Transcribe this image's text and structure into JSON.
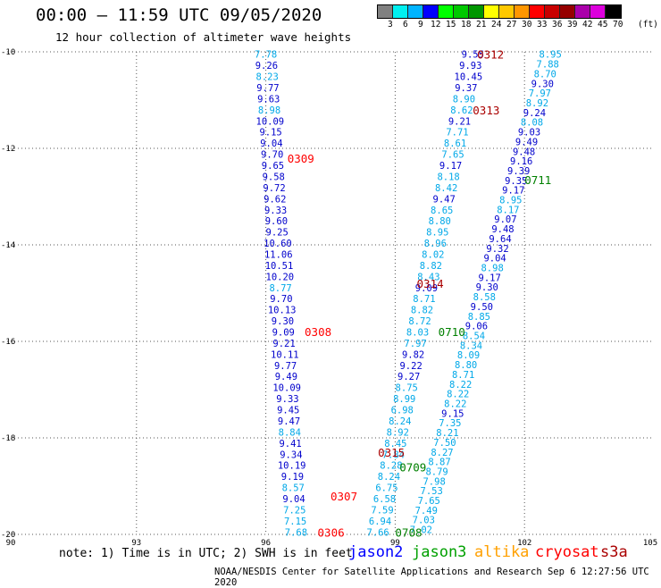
{
  "header": {
    "title": "00:00 – 11:59 UTC 09/05/2020",
    "subtitle": "12 hour collection of altimeter wave heights"
  },
  "colorbar": {
    "unit_label": "(ft)",
    "levels": [
      "3",
      "6",
      "9",
      "12",
      "15",
      "18",
      "21",
      "24",
      "27",
      "30",
      "33",
      "36",
      "39",
      "42",
      "45",
      "70"
    ],
    "colors": [
      "#808080",
      "#00f0f0",
      "#00b4ff",
      "#0000ff",
      "#00ff00",
      "#00c800",
      "#009600",
      "#ffff00",
      "#ffc800",
      "#ff9600",
      "#ff0000",
      "#c80000",
      "#960000",
      "#aa00aa",
      "#dd00dd",
      "#000000"
    ]
  },
  "note": "note: 1) Time is in UTC; 2) SWH is in feet",
  "legend": [
    {
      "label": "jason2",
      "color": "#0000ff"
    },
    {
      "label": "jason3",
      "color": "#00a000"
    },
    {
      "label": "altika",
      "color": "#ffa000"
    },
    {
      "label": "cryosat",
      "color": "#ff0000"
    },
    {
      "label": "s3a",
      "color": "#aa0000"
    }
  ],
  "footer": "NOAA/NESDIS Center for Satellite Applications and Research   Sep  6 12:27:56 UTC 2020",
  "chart_data": {
    "type": "scatter",
    "title": "00:00 – 11:59 UTC 09/05/2020",
    "xlim": [
      90,
      105
    ],
    "ylim": [
      -20,
      -10
    ],
    "x_ticks": [
      90,
      93,
      96,
      99,
      102,
      105
    ],
    "x_tick_labels": [
      "90",
      "93",
      "96",
      "99",
      "102",
      "105"
    ],
    "y_ticks": [
      -10,
      -12,
      -14,
      -16,
      -18,
      -20
    ],
    "y_tick_labels": [
      "-10",
      "-12",
      "-14",
      "-16",
      "-18",
      "-20"
    ],
    "grid": true,
    "colors": {
      "dark": "#0000cc",
      "light": "#00a8e8"
    },
    "tracks": [
      {
        "x0": 96.0,
        "y0": -10.05,
        "x1": 96.7,
        "y1": -19.95,
        "values": [
          [
            "7.78",
            "l"
          ],
          [
            "9.26",
            "d"
          ],
          [
            "8.23",
            "l"
          ],
          [
            "9.77",
            "d"
          ],
          [
            "9.63",
            "d"
          ],
          [
            "8.98",
            "l"
          ],
          [
            "10.09",
            "d"
          ],
          [
            "9.15",
            "d"
          ],
          [
            "9.04",
            "d"
          ],
          [
            "9.70",
            "d"
          ],
          [
            "9.65",
            "d"
          ],
          [
            "9.58",
            "d"
          ],
          [
            "9.72",
            "d"
          ],
          [
            "9.62",
            "d"
          ],
          [
            "9.33",
            "d"
          ],
          [
            "9.60",
            "d"
          ],
          [
            "9.25",
            "d"
          ],
          [
            "10.60",
            "d"
          ],
          [
            "11.06",
            "d"
          ],
          [
            "10.51",
            "d"
          ],
          [
            "10.20",
            "d"
          ],
          [
            "8.77",
            "l"
          ],
          [
            "9.70",
            "d"
          ],
          [
            "10.13",
            "d"
          ],
          [
            "9.30",
            "d"
          ],
          [
            "9.09",
            "d"
          ],
          [
            "9.21",
            "d"
          ],
          [
            "10.11",
            "d"
          ],
          [
            "9.77",
            "d"
          ],
          [
            "9.49",
            "d"
          ],
          [
            "10.09",
            "d"
          ],
          [
            "9.33",
            "d"
          ],
          [
            "9.45",
            "d"
          ],
          [
            "9.47",
            "d"
          ],
          [
            "8.84",
            "l"
          ],
          [
            "9.41",
            "d"
          ],
          [
            "9.34",
            "d"
          ],
          [
            "10.19",
            "d"
          ],
          [
            "9.19",
            "d"
          ],
          [
            "8.57",
            "l"
          ],
          [
            "9.04",
            "d"
          ],
          [
            "7.25",
            "l"
          ],
          [
            "7.15",
            "l"
          ],
          [
            "7.68",
            "l"
          ]
        ]
      },
      {
        "x0": 100.8,
        "y0": -10.05,
        "x1": 98.6,
        "y1": -19.95,
        "values": [
          [
            "9.55",
            "d"
          ],
          [
            "9.93",
            "d"
          ],
          [
            "10.45",
            "d"
          ],
          [
            "9.37",
            "d"
          ],
          [
            "8.90",
            "l"
          ],
          [
            "8.62",
            "l"
          ],
          [
            "9.21",
            "d"
          ],
          [
            "7.71",
            "l"
          ],
          [
            "8.61",
            "l"
          ],
          [
            "7.65",
            "l"
          ],
          [
            "9.17",
            "d"
          ],
          [
            "8.18",
            "l"
          ],
          [
            "8.42",
            "l"
          ],
          [
            "9.47",
            "d"
          ],
          [
            "8.65",
            "l"
          ],
          [
            "8.80",
            "l"
          ],
          [
            "8.95",
            "l"
          ],
          [
            "8.96",
            "l"
          ],
          [
            "8.02",
            "l"
          ],
          [
            "8.82",
            "l"
          ],
          [
            "8.43",
            "l"
          ],
          [
            "9.09",
            "d"
          ],
          [
            "8.71",
            "l"
          ],
          [
            "8.82",
            "l"
          ],
          [
            "8.72",
            "l"
          ],
          [
            "8.03",
            "l"
          ],
          [
            "7.97",
            "l"
          ],
          [
            "9.82",
            "d"
          ],
          [
            "9.22",
            "d"
          ],
          [
            "9.27",
            "d"
          ],
          [
            "8.75",
            "l"
          ],
          [
            "8.99",
            "l"
          ],
          [
            "6.98",
            "l"
          ],
          [
            "8.24",
            "l"
          ],
          [
            "8.92",
            "l"
          ],
          [
            "8.45",
            "l"
          ],
          [
            "7.84",
            "l"
          ],
          [
            "8.28",
            "l"
          ],
          [
            "8.24",
            "l"
          ],
          [
            "6.75",
            "l"
          ],
          [
            "6.58",
            "l"
          ],
          [
            "7.59",
            "l"
          ],
          [
            "6.94",
            "l"
          ],
          [
            "7.66",
            "l"
          ]
        ]
      },
      {
        "x0": 102.6,
        "y0": -10.05,
        "x1": 99.6,
        "y1": -19.9,
        "values": [
          [
            "8.95",
            "l"
          ],
          [
            "7.88",
            "l"
          ],
          [
            "8.70",
            "l"
          ],
          [
            "9.30",
            "d"
          ],
          [
            "7.97",
            "l"
          ],
          [
            "8.92",
            "l"
          ],
          [
            "9.24",
            "d"
          ],
          [
            "8.08",
            "l"
          ],
          [
            "9.03",
            "d"
          ],
          [
            "9.49",
            "d"
          ],
          [
            "9.48",
            "d"
          ],
          [
            "9.16",
            "d"
          ],
          [
            "9.39",
            "d"
          ],
          [
            "9.35",
            "d"
          ],
          [
            "9.17",
            "d"
          ],
          [
            "8.95",
            "l"
          ],
          [
            "8.17",
            "l"
          ],
          [
            "9.07",
            "d"
          ],
          [
            "9.48",
            "d"
          ],
          [
            "9.64",
            "d"
          ],
          [
            "9.32",
            "d"
          ],
          [
            "9.04",
            "d"
          ],
          [
            "8.98",
            "l"
          ],
          [
            "9.17",
            "d"
          ],
          [
            "9.30",
            "d"
          ],
          [
            "8.58",
            "l"
          ],
          [
            "9.50",
            "d"
          ],
          [
            "8.85",
            "l"
          ],
          [
            "9.06",
            "d"
          ],
          [
            "8.54",
            "l"
          ],
          [
            "8.34",
            "l"
          ],
          [
            "8.09",
            "l"
          ],
          [
            "8.80",
            "l"
          ],
          [
            "8.71",
            "l"
          ],
          [
            "8.22",
            "l"
          ],
          [
            "8.22",
            "l"
          ],
          [
            "8.22",
            "l"
          ],
          [
            "9.15",
            "d"
          ],
          [
            "7.35",
            "l"
          ],
          [
            "8.21",
            "l"
          ],
          [
            "7.50",
            "l"
          ],
          [
            "8.27",
            "l"
          ],
          [
            "8.87",
            "l"
          ],
          [
            "8.79",
            "l"
          ],
          [
            "7.98",
            "l"
          ],
          [
            "7.53",
            "l"
          ],
          [
            "7.65",
            "l"
          ],
          [
            "7.49",
            "l"
          ],
          [
            "7.03",
            "l"
          ],
          [
            "7.02",
            "l"
          ]
        ]
      }
    ],
    "annotations": [
      {
        "text": "0312",
        "x": 100.9,
        "y": -10.05,
        "color": "#aa0000"
      },
      {
        "text": "0313",
        "x": 100.8,
        "y": -11.2,
        "color": "#aa0000"
      },
      {
        "text": "0309",
        "x": 96.5,
        "y": -12.2,
        "color": "#ff0000"
      },
      {
        "text": "0711",
        "x": 102.0,
        "y": -12.65,
        "color": "#008000"
      },
      {
        "text": "0314",
        "x": 99.5,
        "y": -14.8,
        "color": "#aa0000"
      },
      {
        "text": "0308",
        "x": 96.9,
        "y": -15.8,
        "color": "#ff0000"
      },
      {
        "text": "0710",
        "x": 100.0,
        "y": -15.8,
        "color": "#008000"
      },
      {
        "text": "0315",
        "x": 98.6,
        "y": -18.3,
        "color": "#aa0000"
      },
      {
        "text": "0709",
        "x": 99.1,
        "y": -18.6,
        "color": "#008000"
      },
      {
        "text": "0307",
        "x": 97.5,
        "y": -19.2,
        "color": "#ff0000"
      },
      {
        "text": "0306",
        "x": 97.2,
        "y": -19.95,
        "color": "#ff0000"
      },
      {
        "text": "0708",
        "x": 99.0,
        "y": -19.95,
        "color": "#008000"
      }
    ]
  }
}
